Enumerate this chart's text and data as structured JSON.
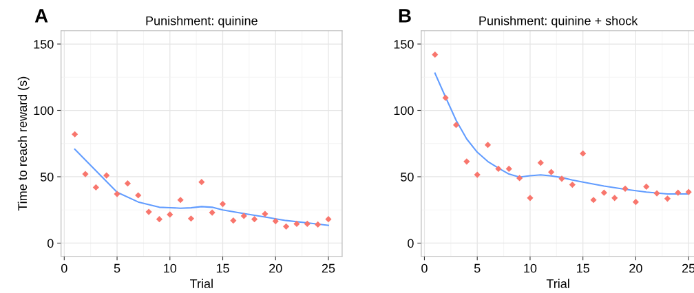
{
  "chart_data": [
    {
      "type": "scatter",
      "title": "Punishment: quinine",
      "xlabel": "Trial",
      "ylabel": "Time to reach reward (s)",
      "annotations": [
        "A"
      ],
      "xlim": [
        -0.3,
        26.3
      ],
      "ylim": [
        -10,
        160
      ],
      "xticks": [
        0,
        5,
        10,
        15,
        20,
        25
      ],
      "yticks": [
        0,
        50,
        100,
        150
      ],
      "grid": true,
      "legend": false,
      "series": [
        {
          "marker": "diamond",
          "color": "#f8766d",
          "x": [
            1,
            2,
            3,
            4,
            5,
            6,
            7,
            8,
            9,
            10,
            11,
            12,
            13,
            14,
            15,
            16,
            17,
            18,
            19,
            20,
            21,
            22,
            23,
            24,
            25
          ],
          "values": [
            82,
            52,
            42,
            51,
            37,
            45,
            36,
            23.5,
            18,
            21.5,
            32.5,
            18.5,
            46,
            23,
            29.5,
            17,
            20.5,
            18,
            22,
            16.5,
            12.5,
            14.5,
            14.5,
            14,
            18
          ]
        },
        {
          "type": "line",
          "color": "#619cff",
          "x": [
            1,
            3,
            5,
            7,
            9,
            10,
            11,
            12,
            13,
            14,
            15,
            17,
            19,
            21,
            23,
            25
          ],
          "values": [
            70.7,
            54.5,
            38.3,
            31,
            27,
            26.7,
            26.3,
            26.6,
            27.5,
            27,
            25,
            22.3,
            19.7,
            17,
            15.3,
            13.4
          ]
        }
      ]
    },
    {
      "type": "scatter",
      "title": "Punishment: quinine + shock",
      "xlabel": "Trial",
      "annotations": [
        "B"
      ],
      "xlim": [
        -0.3,
        25.6
      ],
      "ylim": [
        -10,
        160
      ],
      "xticks": [
        0,
        5,
        10,
        15,
        20,
        25
      ],
      "yticks": [
        0,
        50,
        100,
        150
      ],
      "grid": true,
      "legend": false,
      "series": [
        {
          "marker": "diamond",
          "color": "#f8766d",
          "x": [
            1,
            2,
            3,
            4,
            5,
            6,
            7,
            8,
            9,
            10,
            11,
            12,
            13,
            14,
            15,
            16,
            17,
            18,
            19,
            20,
            21,
            22,
            23,
            24,
            25
          ],
          "values": [
            142,
            109.5,
            89,
            61.5,
            51.5,
            74,
            56,
            56,
            49,
            34,
            60.5,
            53.5,
            48.5,
            44,
            67.5,
            32.5,
            38,
            34,
            41,
            31,
            42.5,
            37.5,
            33.5,
            38,
            38.5
          ]
        },
        {
          "type": "line",
          "color": "#619cff",
          "x": [
            1,
            2,
            3,
            4,
            5,
            6,
            7,
            8,
            9,
            10,
            11,
            12,
            13,
            14,
            15,
            17,
            19,
            21,
            23,
            25
          ],
          "values": [
            128,
            110,
            92.5,
            78.5,
            68.5,
            61.5,
            56.5,
            52,
            49.7,
            50.8,
            51.4,
            50.6,
            49.4,
            47.5,
            46,
            43,
            40.5,
            38.5,
            37,
            37
          ]
        }
      ]
    }
  ]
}
